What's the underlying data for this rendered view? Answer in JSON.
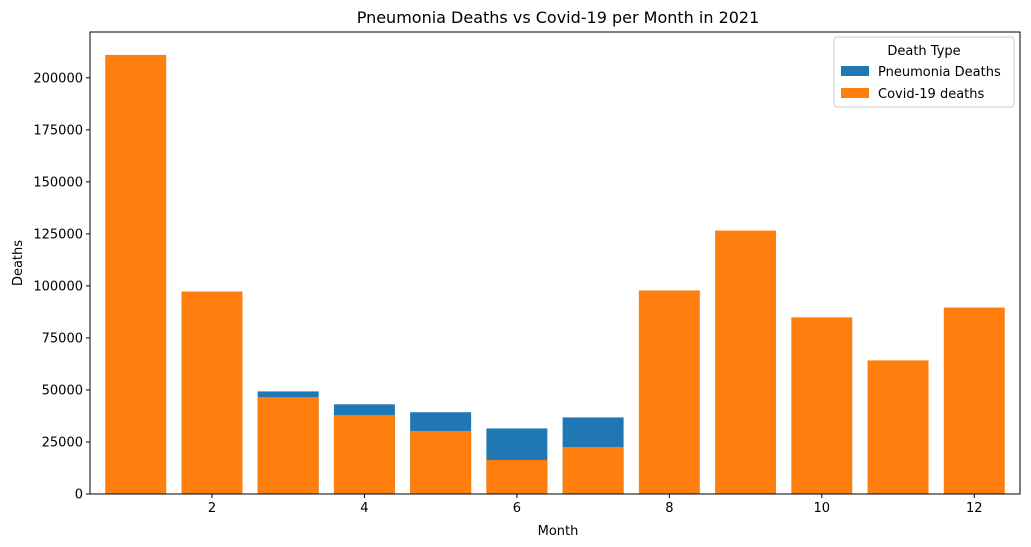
{
  "chart_data": {
    "type": "bar",
    "title": "Pneumonia Deaths vs Covid-19 per Month in 2021",
    "xlabel": "Month",
    "ylabel": "Deaths",
    "x": [
      1,
      2,
      3,
      4,
      5,
      6,
      7,
      8,
      9,
      10,
      11,
      12
    ],
    "xticks": [
      2,
      4,
      6,
      8,
      10,
      12
    ],
    "xlim": [
      0.4,
      12.6
    ],
    "yticks": [
      0,
      25000,
      50000,
      75000,
      100000,
      125000,
      150000,
      175000,
      200000
    ],
    "ylim": [
      0,
      222000
    ],
    "grid": false,
    "legend": {
      "title": "Death Type",
      "placement": "top-right"
    },
    "series": [
      {
        "name": "Pneumonia Deaths",
        "color": "#1f77b4",
        "values": [
          null,
          null,
          49300,
          43100,
          39300,
          31500,
          36800,
          null,
          null,
          null,
          null,
          null
        ]
      },
      {
        "name": "Covid-19 deaths",
        "color": "#ff7f0e",
        "values": [
          211000,
          97300,
          46600,
          37900,
          30300,
          16400,
          22600,
          97800,
          126600,
          84900,
          64200,
          89600
        ]
      }
    ]
  }
}
